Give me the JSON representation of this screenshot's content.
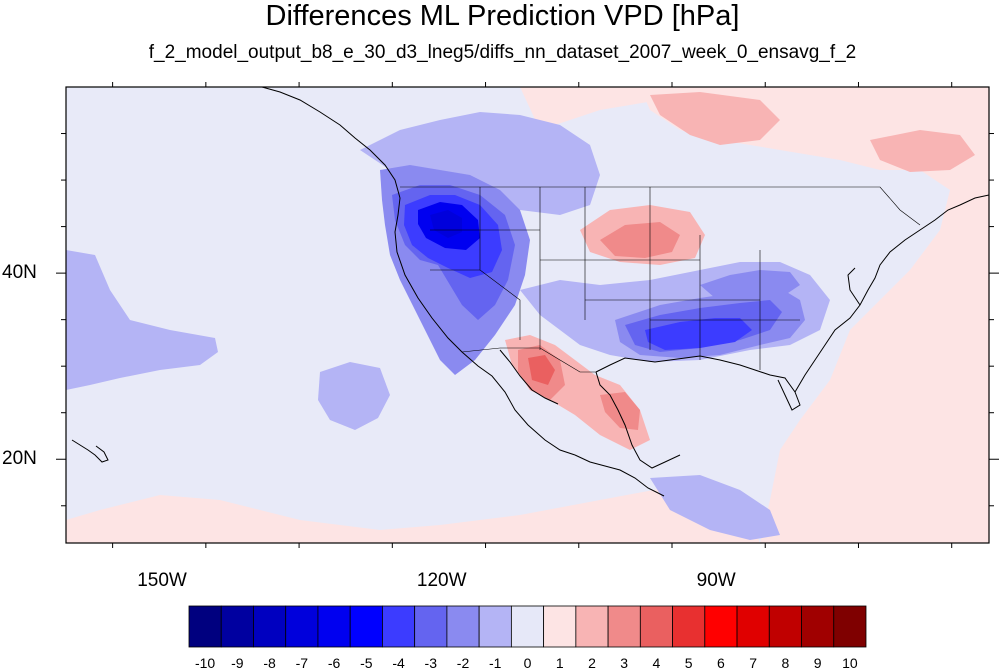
{
  "title": "Differences ML Prediction VPD [hPa]",
  "subtitle": "f_2_model_output_b8_e_30_d3_lneg5/diffs_nn_dataset_2007_week_0_ensavg_f_2",
  "map": {
    "projection": "cylindrical-equidistant",
    "lon_range": [
      -160,
      -61
    ],
    "lat_range": [
      11,
      60
    ],
    "ocean_color": "#e8eaf8",
    "coastline_color": "#000000"
  },
  "axes": {
    "lon_labels": [
      {
        "lon": -150,
        "text": "150W"
      },
      {
        "lon": -120,
        "text": "120W"
      },
      {
        "lon": -90,
        "text": "90W"
      }
    ],
    "lat_labels": [
      {
        "lat": 40,
        "text": "40N"
      },
      {
        "lat": 20,
        "text": "20N"
      }
    ]
  },
  "colorbar": {
    "labels": [
      "-10",
      "-9",
      "-8",
      "-7",
      "-6",
      "-5",
      "-4",
      "-3",
      "-2",
      "-1",
      "0",
      "1",
      "2",
      "3",
      "4",
      "5",
      "6",
      "7",
      "8",
      "9",
      "10"
    ],
    "colors": [
      "#00007f",
      "#0000a0",
      "#0000c0",
      "#0000dc",
      "#0000f0",
      "#0000ff",
      "#3c3cff",
      "#6464f0",
      "#8a8af0",
      "#b4b4f5",
      "#e6e8f8",
      "#fde4e4",
      "#f8b4b4",
      "#f08a8a",
      "#ea6060",
      "#e83030",
      "#ff0000",
      "#e00000",
      "#c00000",
      "#a00000",
      "#7f0000"
    ]
  },
  "chart_data": {
    "type": "heatmap",
    "title": "Differences ML Prediction VPD [hPa]",
    "subtitle": "f_2_model_output_b8_e_30_d3_lneg5/diffs_nn_dataset_2007_week_0_ensavg_f_2",
    "units": "hPa",
    "value_range": [
      -10,
      10
    ],
    "contour_levels": [
      -10,
      -9,
      -8,
      -7,
      -6,
      -5,
      -4,
      -3,
      -2,
      -1,
      0,
      1,
      2,
      3,
      4,
      5,
      6,
      7,
      8,
      9,
      10
    ],
    "regions": [
      {
        "lon": -119,
        "lat": 43,
        "value": -6
      },
      {
        "lon": -116,
        "lat": 39,
        "value": -4
      },
      {
        "lon": -113,
        "lat": 45,
        "value": -3
      },
      {
        "lon": -89,
        "lat": 34,
        "value": -4
      },
      {
        "lon": -94,
        "lat": 33,
        "value": -3
      },
      {
        "lon": -85,
        "lat": 37,
        "value": -2
      },
      {
        "lon": -100,
        "lat": 42,
        "value": 2
      },
      {
        "lon": -108,
        "lat": 28,
        "value": 3
      },
      {
        "lon": -102,
        "lat": 25,
        "value": 2
      },
      {
        "lon": -90,
        "lat": 55,
        "value": 1
      },
      {
        "lon": -153,
        "lat": 33,
        "value": -1
      },
      {
        "lon": -128,
        "lat": 27,
        "value": -1
      },
      {
        "lon": -87,
        "lat": 14,
        "value": -3
      },
      {
        "lon": -66,
        "lat": 45,
        "value": 1
      },
      {
        "lon": -70,
        "lat": 28,
        "value": 1
      },
      {
        "lon": -140,
        "lat": 14,
        "value": 1
      }
    ]
  }
}
